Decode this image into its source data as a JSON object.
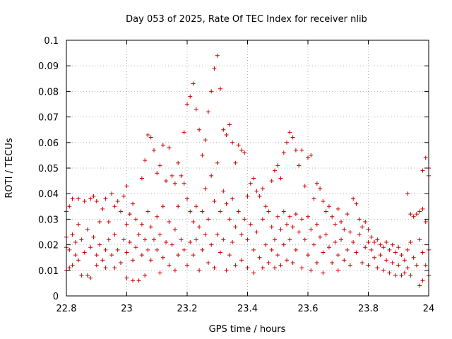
{
  "chart_data": {
    "type": "scatter",
    "title": "Day 053 of 2025, Rate Of TEC Index for receiver nlib",
    "xlabel": "GPS time / hours",
    "ylabel": "ROTI / TECUs",
    "xlim": [
      22.8,
      24.0
    ],
    "ylim": [
      0,
      0.1
    ],
    "x_ticks": [
      "22.8",
      "23",
      "23.2",
      "23.4",
      "23.6",
      "23.8",
      "24"
    ],
    "y_ticks": [
      "0",
      "0.01",
      "0.02",
      "0.03",
      "0.04",
      "0.05",
      "0.06",
      "0.07",
      "0.08",
      "0.09",
      "0.1"
    ],
    "grid": true,
    "marker": "plus",
    "colors": {
      "points": "#cc0000"
    },
    "series": [
      {
        "points": [
          [
            22.8,
            0.033
          ],
          [
            22.8,
            0.023
          ],
          [
            22.8,
            0.019
          ],
          [
            22.8,
            0.01
          ],
          [
            22.81,
            0.035
          ],
          [
            22.81,
            0.018
          ],
          [
            22.81,
            0.011
          ],
          [
            22.82,
            0.038
          ],
          [
            22.82,
            0.024
          ],
          [
            22.82,
            0.012
          ],
          [
            22.83,
            0.021
          ],
          [
            22.83,
            0.016
          ],
          [
            22.84,
            0.038
          ],
          [
            22.84,
            0.028
          ],
          [
            22.84,
            0.014
          ],
          [
            22.85,
            0.022
          ],
          [
            22.85,
            0.008
          ],
          [
            22.86,
            0.037
          ],
          [
            22.86,
            0.017
          ],
          [
            22.87,
            0.026
          ],
          [
            22.87,
            0.008
          ],
          [
            22.88,
            0.038
          ],
          [
            22.88,
            0.019
          ],
          [
            22.88,
            0.007
          ],
          [
            22.89,
            0.039
          ],
          [
            22.89,
            0.023
          ],
          [
            22.9,
            0.037
          ],
          [
            22.9,
            0.016
          ],
          [
            22.9,
            0.012
          ],
          [
            22.91,
            0.029
          ],
          [
            22.91,
            0.02
          ],
          [
            22.92,
            0.034
          ],
          [
            22.92,
            0.014
          ],
          [
            22.93,
            0.038
          ],
          [
            22.93,
            0.018
          ],
          [
            22.93,
            0.011
          ],
          [
            22.94,
            0.029
          ],
          [
            22.94,
            0.022
          ],
          [
            22.95,
            0.04
          ],
          [
            22.95,
            0.016
          ],
          [
            22.96,
            0.035
          ],
          [
            22.96,
            0.024
          ],
          [
            22.96,
            0.011
          ],
          [
            22.97,
            0.037
          ],
          [
            22.97,
            0.018
          ],
          [
            22.98,
            0.033
          ],
          [
            22.98,
            0.013
          ],
          [
            22.99,
            0.039
          ],
          [
            22.99,
            0.022
          ],
          [
            23.0,
            0.043
          ],
          [
            23.0,
            0.028
          ],
          [
            23.0,
            0.017
          ],
          [
            23.0,
            0.007
          ],
          [
            23.01,
            0.032
          ],
          [
            23.01,
            0.021
          ],
          [
            23.02,
            0.036
          ],
          [
            23.02,
            0.014
          ],
          [
            23.02,
            0.006
          ],
          [
            23.03,
            0.03
          ],
          [
            23.03,
            0.019
          ],
          [
            23.04,
            0.024
          ],
          [
            23.04,
            0.006
          ],
          [
            23.05,
            0.046
          ],
          [
            23.05,
            0.028
          ],
          [
            23.05,
            0.016
          ],
          [
            23.06,
            0.053
          ],
          [
            23.06,
            0.022
          ],
          [
            23.06,
            0.008
          ],
          [
            23.07,
            0.063
          ],
          [
            23.07,
            0.033
          ],
          [
            23.07,
            0.018
          ],
          [
            23.08,
            0.062
          ],
          [
            23.08,
            0.027
          ],
          [
            23.08,
            0.014
          ],
          [
            23.09,
            0.057
          ],
          [
            23.09,
            0.022
          ],
          [
            23.1,
            0.048
          ],
          [
            23.1,
            0.031
          ],
          [
            23.1,
            0.018
          ],
          [
            23.11,
            0.051
          ],
          [
            23.11,
            0.024
          ],
          [
            23.11,
            0.009
          ],
          [
            23.12,
            0.059
          ],
          [
            23.12,
            0.035
          ],
          [
            23.12,
            0.015
          ],
          [
            23.13,
            0.045
          ],
          [
            23.13,
            0.021
          ],
          [
            23.14,
            0.058
          ],
          [
            23.14,
            0.029
          ],
          [
            23.14,
            0.012
          ],
          [
            23.15,
            0.047
          ],
          [
            23.15,
            0.02
          ],
          [
            23.16,
            0.044
          ],
          [
            23.16,
            0.026
          ],
          [
            23.16,
            0.01
          ],
          [
            23.17,
            0.052
          ],
          [
            23.17,
            0.035
          ],
          [
            23.17,
            0.016
          ],
          [
            23.18,
            0.047
          ],
          [
            23.18,
            0.022
          ],
          [
            23.19,
            0.064
          ],
          [
            23.19,
            0.044
          ],
          [
            23.19,
            0.018
          ],
          [
            23.2,
            0.075
          ],
          [
            23.2,
            0.038
          ],
          [
            23.2,
            0.012
          ],
          [
            23.21,
            0.078
          ],
          [
            23.21,
            0.033
          ],
          [
            23.21,
            0.021
          ],
          [
            23.22,
            0.083
          ],
          [
            23.22,
            0.029
          ],
          [
            23.22,
            0.016
          ],
          [
            23.23,
            0.073
          ],
          [
            23.23,
            0.035
          ],
          [
            23.23,
            0.022
          ],
          [
            23.24,
            0.065
          ],
          [
            23.24,
            0.027
          ],
          [
            23.24,
            0.01
          ],
          [
            23.25,
            0.055
          ],
          [
            23.25,
            0.033
          ],
          [
            23.25,
            0.018
          ],
          [
            23.26,
            0.061
          ],
          [
            23.26,
            0.042
          ],
          [
            23.26,
            0.024
          ],
          [
            23.27,
            0.072
          ],
          [
            23.27,
            0.03
          ],
          [
            23.27,
            0.013
          ],
          [
            23.28,
            0.08
          ],
          [
            23.28,
            0.047
          ],
          [
            23.28,
            0.02
          ],
          [
            23.29,
            0.089
          ],
          [
            23.29,
            0.037
          ],
          [
            23.29,
            0.011
          ],
          [
            23.3,
            0.094
          ],
          [
            23.3,
            0.052
          ],
          [
            23.3,
            0.024
          ],
          [
            23.31,
            0.081
          ],
          [
            23.31,
            0.033
          ],
          [
            23.31,
            0.017
          ],
          [
            23.32,
            0.065
          ],
          [
            23.32,
            0.041
          ],
          [
            23.32,
            0.022
          ],
          [
            23.33,
            0.063
          ],
          [
            23.33,
            0.036
          ],
          [
            23.33,
            0.01
          ],
          [
            23.34,
            0.067
          ],
          [
            23.34,
            0.03
          ],
          [
            23.34,
            0.016
          ],
          [
            23.35,
            0.06
          ],
          [
            23.35,
            0.038
          ],
          [
            23.35,
            0.021
          ],
          [
            23.36,
            0.052
          ],
          [
            23.36,
            0.027
          ],
          [
            23.36,
            0.012
          ],
          [
            23.37,
            0.059
          ],
          [
            23.37,
            0.033
          ],
          [
            23.38,
            0.057
          ],
          [
            23.38,
            0.024
          ],
          [
            23.38,
            0.014
          ],
          [
            23.39,
            0.056
          ],
          [
            23.39,
            0.03
          ],
          [
            23.4,
            0.039
          ],
          [
            23.4,
            0.022
          ],
          [
            23.4,
            0.011
          ],
          [
            23.41,
            0.044
          ],
          [
            23.41,
            0.028
          ],
          [
            23.42,
            0.046
          ],
          [
            23.42,
            0.018
          ],
          [
            23.42,
            0.009
          ],
          [
            23.43,
            0.041
          ],
          [
            23.43,
            0.025
          ],
          [
            23.44,
            0.039
          ],
          [
            23.44,
            0.015
          ],
          [
            23.45,
            0.042
          ],
          [
            23.45,
            0.03
          ],
          [
            23.45,
            0.011
          ],
          [
            23.46,
            0.035
          ],
          [
            23.46,
            0.02
          ],
          [
            23.47,
            0.033
          ],
          [
            23.47,
            0.013
          ],
          [
            23.48,
            0.045
          ],
          [
            23.48,
            0.027
          ],
          [
            23.48,
            0.018
          ],
          [
            23.49,
            0.049
          ],
          [
            23.49,
            0.022
          ],
          [
            23.49,
            0.011
          ],
          [
            23.5,
            0.051
          ],
          [
            23.5,
            0.031
          ],
          [
            23.5,
            0.016
          ],
          [
            23.51,
            0.046
          ],
          [
            23.51,
            0.026
          ],
          [
            23.51,
            0.012
          ],
          [
            23.52,
            0.056
          ],
          [
            23.52,
            0.033
          ],
          [
            23.52,
            0.02
          ],
          [
            23.53,
            0.06
          ],
          [
            23.53,
            0.028
          ],
          [
            23.53,
            0.014
          ],
          [
            23.54,
            0.064
          ],
          [
            23.54,
            0.031
          ],
          [
            23.54,
            0.022
          ],
          [
            23.55,
            0.062
          ],
          [
            23.55,
            0.027
          ],
          [
            23.55,
            0.013
          ],
          [
            23.56,
            0.057
          ],
          [
            23.56,
            0.032
          ],
          [
            23.56,
            0.018
          ],
          [
            23.57,
            0.051
          ],
          [
            23.57,
            0.025
          ],
          [
            23.58,
            0.057
          ],
          [
            23.58,
            0.03
          ],
          [
            23.58,
            0.011
          ],
          [
            23.59,
            0.043
          ],
          [
            23.59,
            0.022
          ],
          [
            23.6,
            0.054
          ],
          [
            23.6,
            0.031
          ],
          [
            23.6,
            0.016
          ],
          [
            23.61,
            0.055
          ],
          [
            23.61,
            0.026
          ],
          [
            23.61,
            0.01
          ],
          [
            23.62,
            0.038
          ],
          [
            23.62,
            0.02
          ],
          [
            23.63,
            0.044
          ],
          [
            23.63,
            0.028
          ],
          [
            23.63,
            0.013
          ],
          [
            23.64,
            0.042
          ],
          [
            23.64,
            0.023
          ],
          [
            23.65,
            0.037
          ],
          [
            23.65,
            0.017
          ],
          [
            23.65,
            0.009
          ],
          [
            23.66,
            0.033
          ],
          [
            23.66,
            0.024
          ],
          [
            23.67,
            0.035
          ],
          [
            23.67,
            0.019
          ],
          [
            23.68,
            0.031
          ],
          [
            23.68,
            0.013
          ],
          [
            23.69,
            0.028
          ],
          [
            23.69,
            0.021
          ],
          [
            23.7,
            0.034
          ],
          [
            23.7,
            0.016
          ],
          [
            23.7,
            0.01
          ],
          [
            23.71,
            0.029
          ],
          [
            23.71,
            0.022
          ],
          [
            23.72,
            0.026
          ],
          [
            23.72,
            0.014
          ],
          [
            23.73,
            0.032
          ],
          [
            23.73,
            0.018
          ],
          [
            23.74,
            0.025
          ],
          [
            23.74,
            0.012
          ],
          [
            23.75,
            0.038
          ],
          [
            23.75,
            0.021
          ],
          [
            23.76,
            0.036
          ],
          [
            23.76,
            0.017
          ],
          [
            23.77,
            0.03
          ],
          [
            23.77,
            0.024
          ],
          [
            23.78,
            0.027
          ],
          [
            23.78,
            0.013
          ],
          [
            23.79,
            0.029
          ],
          [
            23.79,
            0.019
          ],
          [
            23.8,
            0.026
          ],
          [
            23.8,
            0.021
          ],
          [
            23.8,
            0.012
          ],
          [
            23.81,
            0.023
          ],
          [
            23.81,
            0.018
          ],
          [
            23.82,
            0.021
          ],
          [
            23.82,
            0.015
          ],
          [
            23.83,
            0.022
          ],
          [
            23.83,
            0.011
          ],
          [
            23.84,
            0.02
          ],
          [
            23.84,
            0.016
          ],
          [
            23.85,
            0.019
          ],
          [
            23.85,
            0.01
          ],
          [
            23.86,
            0.021
          ],
          [
            23.86,
            0.014
          ],
          [
            23.87,
            0.018
          ],
          [
            23.87,
            0.009
          ],
          [
            23.88,
            0.02
          ],
          [
            23.88,
            0.013
          ],
          [
            23.89,
            0.017
          ],
          [
            23.89,
            0.008
          ],
          [
            23.9,
            0.019
          ],
          [
            23.9,
            0.012
          ],
          [
            23.91,
            0.016
          ],
          [
            23.91,
            0.008
          ],
          [
            23.92,
            0.014
          ],
          [
            23.92,
            0.009
          ],
          [
            23.93,
            0.04
          ],
          [
            23.93,
            0.018
          ],
          [
            23.93,
            0.011
          ],
          [
            23.94,
            0.032
          ],
          [
            23.94,
            0.021
          ],
          [
            23.94,
            0.008
          ],
          [
            23.95,
            0.031
          ],
          [
            23.95,
            0.015
          ],
          [
            23.96,
            0.032
          ],
          [
            23.96,
            0.012
          ],
          [
            23.97,
            0.033
          ],
          [
            23.97,
            0.022
          ],
          [
            23.97,
            0.004
          ],
          [
            23.98,
            0.049
          ],
          [
            23.98,
            0.034
          ],
          [
            23.98,
            0.017
          ],
          [
            23.98,
            0.006
          ],
          [
            23.99,
            0.054
          ],
          [
            23.99,
            0.029
          ],
          [
            23.99,
            0.012
          ],
          [
            24.0,
            0.05
          ],
          [
            24.0,
            0.047
          ],
          [
            24.0,
            0.018
          ],
          [
            24.0,
            0.008
          ]
        ]
      }
    ]
  }
}
